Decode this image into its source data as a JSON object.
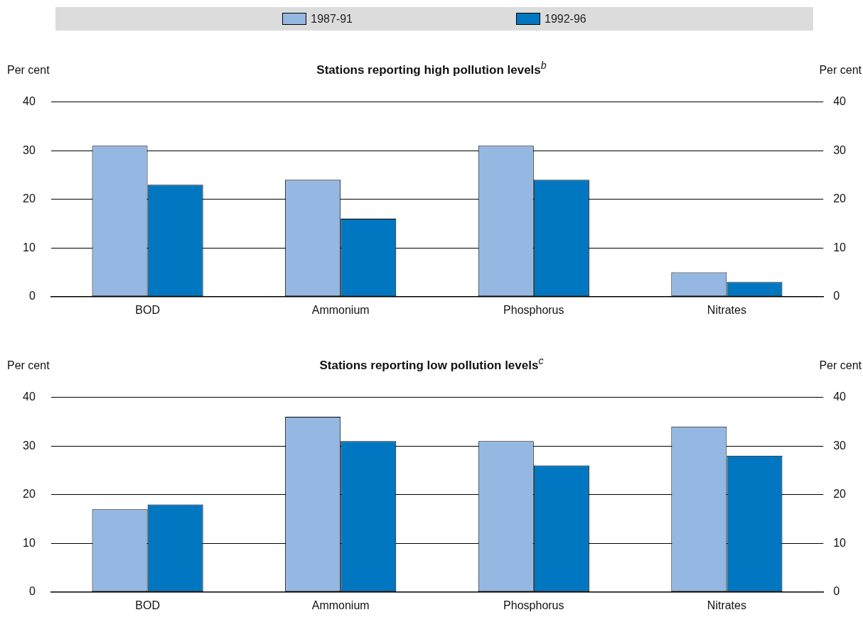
{
  "chart_data": [
    {
      "type": "bar",
      "title": "Stations reporting high pollution levels$^{b}$",
      "ylabel": "Per cent",
      "y2label": "Per cent",
      "categories": [
        "BOD",
        "Ammonium",
        "Phosphorus",
        "Nitrates"
      ],
      "series": [
        {
          "name": "1987-91",
          "color": "#95b8e2",
          "values": [
            31,
            24,
            31,
            5
          ]
        },
        {
          "name": "1992-96",
          "color": "#0077c0",
          "values": [
            23,
            16,
            24,
            3
          ]
        }
      ],
      "ylim": [
        0,
        40
      ],
      "yticks": [
        0,
        10,
        20,
        30,
        40
      ],
      "y2lim": [
        0,
        40
      ],
      "y2ticks": [
        0,
        10,
        20,
        30,
        40
      ],
      "grid": "y",
      "legend": "top"
    },
    {
      "type": "bar",
      "title": "Stations reporting low pollution levels$^{c}$",
      "ylabel": "Per cent",
      "y2label": "Per cent",
      "categories": [
        "BOD",
        "Ammonium",
        "Phosphorus",
        "Nitrates"
      ],
      "series": [
        {
          "color": "#95b8e2",
          "values": [
            17,
            36,
            31,
            34
          ]
        },
        {
          "color": "#0077c0",
          "values": [
            18,
            31,
            26,
            28
          ]
        }
      ],
      "ylim": [
        0,
        40
      ],
      "yticks": [
        0,
        10,
        20,
        30,
        40
      ],
      "y2lim": [
        0,
        40
      ],
      "y2ticks": [
        0,
        10,
        20,
        30,
        40
      ],
      "grid": "y"
    }
  ]
}
